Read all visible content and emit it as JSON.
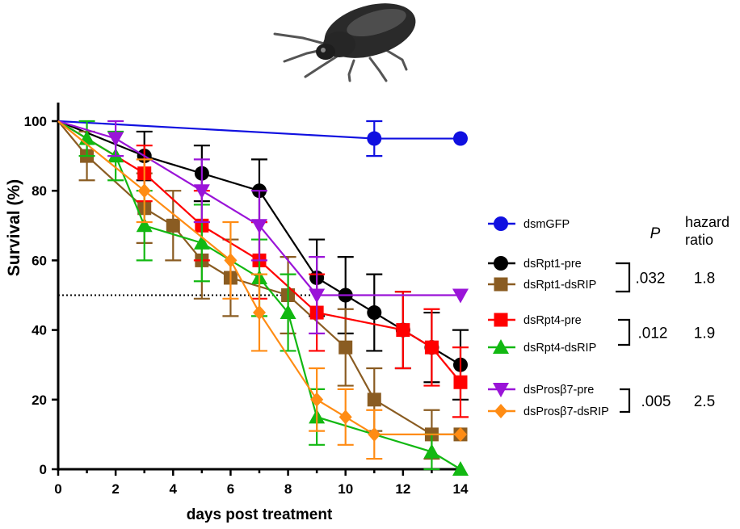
{
  "chart_data": {
    "type": "line",
    "title": "",
    "xlabel": "days post treatment",
    "ylabel": "Survival (%)",
    "xlim": [
      0,
      14
    ],
    "ylim": [
      0,
      100
    ],
    "xticks": [
      0,
      2,
      4,
      6,
      8,
      10,
      12,
      14
    ],
    "yticks": [
      0,
      20,
      40,
      60,
      80,
      100
    ],
    "reference_line": {
      "y": 50,
      "style": "dotted"
    },
    "legend_position": "right",
    "stats_headers": {
      "p": "P",
      "hr": "hazard ratio"
    },
    "series": [
      {
        "name": "dsmGFP",
        "color": "#1010e0",
        "marker": "circle",
        "points": [
          [
            0,
            100
          ],
          [
            11,
            95
          ],
          [
            14,
            95
          ]
        ],
        "errors": [
          null,
          5,
          null
        ]
      },
      {
        "name": "dsRpt1-pre",
        "color": "#000000",
        "marker": "circle",
        "points": [
          [
            0,
            100
          ],
          [
            3,
            90
          ],
          [
            5,
            85
          ],
          [
            7,
            80
          ],
          [
            9,
            55
          ],
          [
            10,
            50
          ],
          [
            11,
            45
          ],
          [
            12,
            40
          ],
          [
            13,
            35
          ],
          [
            14,
            30
          ]
        ],
        "errors": [
          null,
          7,
          8,
          9,
          11,
          11,
          11,
          11,
          10,
          10
        ]
      },
      {
        "name": "dsRpt1-dsRIP",
        "color": "#8a5c22",
        "marker": "square",
        "points": [
          [
            0,
            100
          ],
          [
            1,
            90
          ],
          [
            3,
            75
          ],
          [
            4,
            70
          ],
          [
            5,
            60
          ],
          [
            6,
            55
          ],
          [
            8,
            50
          ],
          [
            10,
            35
          ],
          [
            11,
            20
          ],
          [
            13,
            10
          ],
          [
            14,
            10
          ]
        ],
        "errors": [
          null,
          7,
          10,
          10,
          11,
          11,
          11,
          11,
          9,
          7,
          null
        ]
      },
      {
        "name": "dsRpt4-pre",
        "color": "#ff0000",
        "marker": "square",
        "points": [
          [
            0,
            100
          ],
          [
            3,
            85
          ],
          [
            5,
            70
          ],
          [
            7,
            60
          ],
          [
            9,
            45
          ],
          [
            12,
            40
          ],
          [
            13,
            35
          ],
          [
            14,
            25
          ]
        ],
        "errors": [
          null,
          8,
          10,
          11,
          11,
          11,
          11,
          10
        ]
      },
      {
        "name": "dsRpt4-dsRIP",
        "color": "#12b812",
        "marker": "triangle-up",
        "points": [
          [
            0,
            100
          ],
          [
            1,
            95
          ],
          [
            2,
            90
          ],
          [
            3,
            70
          ],
          [
            5,
            65
          ],
          [
            7,
            55
          ],
          [
            8,
            45
          ],
          [
            9,
            15
          ],
          [
            13,
            5
          ],
          [
            14,
            0
          ]
        ],
        "errors": [
          null,
          5,
          7,
          10,
          11,
          11,
          11,
          8,
          5,
          null
        ]
      },
      {
        "name": "dsProsβ7-pre",
        "color": "#9a14d8",
        "marker": "triangle-down",
        "points": [
          [
            0,
            100
          ],
          [
            2,
            95
          ],
          [
            5,
            80
          ],
          [
            7,
            70
          ],
          [
            9,
            50
          ],
          [
            14,
            50
          ]
        ],
        "errors": [
          null,
          5,
          9,
          10,
          11,
          null
        ]
      },
      {
        "name": "dsProsβ7-dsRIP",
        "color": "#ff8c14",
        "marker": "diamond",
        "points": [
          [
            0,
            100
          ],
          [
            3,
            80
          ],
          [
            6,
            60
          ],
          [
            7,
            45
          ],
          [
            9,
            20
          ],
          [
            10,
            15
          ],
          [
            11,
            10
          ],
          [
            14,
            10
          ]
        ],
        "errors": [
          null,
          9,
          11,
          11,
          9,
          8,
          7,
          null
        ]
      }
    ],
    "comparisons": [
      {
        "pair": [
          "dsRpt1-pre",
          "dsRpt1-dsRIP"
        ],
        "p": ".032",
        "hr": "1.8"
      },
      {
        "pair": [
          "dsRpt4-pre",
          "dsRpt4-dsRIP"
        ],
        "p": ".012",
        "hr": "1.9"
      },
      {
        "pair": [
          "dsProsβ7-pre",
          "dsProsβ7-dsRIP"
        ],
        "p": ".005",
        "hr": "2.5"
      }
    ]
  }
}
